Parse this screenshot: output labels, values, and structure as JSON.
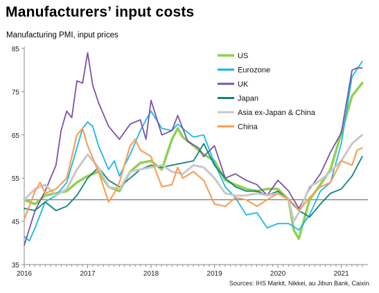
{
  "title": "Manufacturers’ input costs",
  "subtitle": "Manufacturing PMI, input prices",
  "source": "Sources: IHS Markit, Nikkei, au Jibun Bank, Caixin.",
  "chart_data": {
    "type": "line",
    "title": "Manufacturers’ input costs",
    "ylabel": "Manufacturing PMI, input prices",
    "xlabel": "",
    "xlim": [
      2016.0,
      2021.33
    ],
    "ylim": [
      35,
      85
    ],
    "y_ticks": [
      35,
      45,
      55,
      65,
      75,
      85
    ],
    "x_ticks": [
      "2016",
      "2017",
      "2018",
      "2019",
      "2020",
      "2021"
    ],
    "x_tick_values": [
      2016,
      2017,
      2018,
      2019,
      2020,
      2021
    ],
    "reference_line": 50,
    "grid": false,
    "legend_position": "top-right",
    "series": [
      {
        "name": "US",
        "color": "#8fd14f",
        "width": 3.5,
        "points": [
          [
            2016.0,
            50.0
          ],
          [
            2016.17,
            49.0
          ],
          [
            2016.33,
            51.0
          ],
          [
            2016.5,
            51.5
          ],
          [
            2016.67,
            52.0
          ],
          [
            2016.83,
            54.0
          ],
          [
            2017.0,
            55.5
          ],
          [
            2017.17,
            56.5
          ],
          [
            2017.33,
            53.0
          ],
          [
            2017.5,
            52.0
          ],
          [
            2017.67,
            56.5
          ],
          [
            2017.83,
            58.5
          ],
          [
            2018.0,
            59.0
          ],
          [
            2018.17,
            57.0
          ],
          [
            2018.33,
            64.0
          ],
          [
            2018.42,
            66.5
          ],
          [
            2018.5,
            64.5
          ],
          [
            2018.67,
            62.5
          ],
          [
            2018.83,
            60.5
          ],
          [
            2019.0,
            59.0
          ],
          [
            2019.17,
            54.5
          ],
          [
            2019.33,
            53.5
          ],
          [
            2019.5,
            52.5
          ],
          [
            2019.67,
            52.0
          ],
          [
            2019.83,
            52.5
          ],
          [
            2020.0,
            52.5
          ],
          [
            2020.17,
            50.0
          ],
          [
            2020.25,
            43.0
          ],
          [
            2020.33,
            41.0
          ],
          [
            2020.5,
            50.0
          ],
          [
            2020.67,
            53.5
          ],
          [
            2020.83,
            57.0
          ],
          [
            2021.0,
            65.5
          ],
          [
            2021.17,
            74.0
          ],
          [
            2021.33,
            77.0
          ]
        ]
      },
      {
        "name": "Eurozone",
        "color": "#1ab7ea",
        "width": 1.8,
        "points": [
          [
            2016.0,
            41.5
          ],
          [
            2016.08,
            40.5
          ],
          [
            2016.17,
            43.5
          ],
          [
            2016.33,
            49.5
          ],
          [
            2016.5,
            51.0
          ],
          [
            2016.67,
            54.0
          ],
          [
            2016.83,
            62.0
          ],
          [
            2016.92,
            66.5
          ],
          [
            2017.0,
            68.0
          ],
          [
            2017.08,
            67.0
          ],
          [
            2017.17,
            62.5
          ],
          [
            2017.33,
            57.0
          ],
          [
            2017.42,
            59.0
          ],
          [
            2017.5,
            55.5
          ],
          [
            2017.67,
            60.5
          ],
          [
            2017.83,
            66.0
          ],
          [
            2017.92,
            68.5
          ],
          [
            2018.0,
            70.5
          ],
          [
            2018.17,
            66.5
          ],
          [
            2018.33,
            66.0
          ],
          [
            2018.42,
            67.5
          ],
          [
            2018.5,
            66.5
          ],
          [
            2018.67,
            64.5
          ],
          [
            2018.83,
            65.0
          ],
          [
            2019.0,
            58.5
          ],
          [
            2019.17,
            53.0
          ],
          [
            2019.33,
            50.5
          ],
          [
            2019.5,
            46.5
          ],
          [
            2019.67,
            47.0
          ],
          [
            2019.83,
            43.5
          ],
          [
            2020.0,
            44.5
          ],
          [
            2020.17,
            44.5
          ],
          [
            2020.33,
            43.0
          ],
          [
            2020.5,
            46.5
          ],
          [
            2020.67,
            52.0
          ],
          [
            2020.83,
            54.0
          ],
          [
            2021.0,
            63.0
          ],
          [
            2021.17,
            78.5
          ],
          [
            2021.33,
            82.0
          ]
        ]
      },
      {
        "name": "UK",
        "color": "#7a52a8",
        "width": 1.8,
        "points": [
          [
            2016.0,
            39.5
          ],
          [
            2016.17,
            47.5
          ],
          [
            2016.33,
            52.0
          ],
          [
            2016.5,
            58.0
          ],
          [
            2016.58,
            66.0
          ],
          [
            2016.67,
            70.5
          ],
          [
            2016.75,
            69.0
          ],
          [
            2016.83,
            77.5
          ],
          [
            2016.92,
            77.0
          ],
          [
            2017.0,
            84.0
          ],
          [
            2017.08,
            76.5
          ],
          [
            2017.17,
            72.5
          ],
          [
            2017.33,
            67.0
          ],
          [
            2017.5,
            64.0
          ],
          [
            2017.67,
            67.5
          ],
          [
            2017.83,
            68.5
          ],
          [
            2017.92,
            64.0
          ],
          [
            2018.0,
            73.0
          ],
          [
            2018.17,
            65.0
          ],
          [
            2018.33,
            66.0
          ],
          [
            2018.42,
            69.5
          ],
          [
            2018.58,
            63.5
          ],
          [
            2018.75,
            62.0
          ],
          [
            2018.83,
            60.0
          ],
          [
            2019.0,
            62.5
          ],
          [
            2019.17,
            55.0
          ],
          [
            2019.33,
            56.0
          ],
          [
            2019.5,
            54.5
          ],
          [
            2019.67,
            53.5
          ],
          [
            2019.83,
            51.0
          ],
          [
            2020.0,
            54.5
          ],
          [
            2020.17,
            52.0
          ],
          [
            2020.33,
            48.0
          ],
          [
            2020.5,
            52.5
          ],
          [
            2020.67,
            56.0
          ],
          [
            2020.83,
            61.0
          ],
          [
            2021.0,
            65.5
          ],
          [
            2021.17,
            80.0
          ],
          [
            2021.25,
            80.5
          ],
          [
            2021.33,
            80.5
          ]
        ]
      },
      {
        "name": "Japan",
        "color": "#0f8376",
        "width": 1.8,
        "points": [
          [
            2016.0,
            48.0
          ],
          [
            2016.17,
            47.5
          ],
          [
            2016.33,
            49.5
          ],
          [
            2016.5,
            47.5
          ],
          [
            2016.67,
            48.5
          ],
          [
            2016.83,
            51.0
          ],
          [
            2017.0,
            55.0
          ],
          [
            2017.17,
            57.5
          ],
          [
            2017.33,
            54.5
          ],
          [
            2017.5,
            53.0
          ],
          [
            2017.67,
            55.0
          ],
          [
            2017.83,
            57.0
          ],
          [
            2018.0,
            58.0
          ],
          [
            2018.17,
            57.5
          ],
          [
            2018.33,
            58.0
          ],
          [
            2018.5,
            58.5
          ],
          [
            2018.67,
            59.0
          ],
          [
            2018.83,
            63.0
          ],
          [
            2019.0,
            58.0
          ],
          [
            2019.17,
            55.0
          ],
          [
            2019.33,
            53.0
          ],
          [
            2019.5,
            52.0
          ],
          [
            2019.67,
            52.0
          ],
          [
            2019.83,
            51.0
          ],
          [
            2020.0,
            52.0
          ],
          [
            2020.17,
            50.0
          ],
          [
            2020.33,
            47.5
          ],
          [
            2020.5,
            46.0
          ],
          [
            2020.67,
            49.0
          ],
          [
            2020.83,
            51.5
          ],
          [
            2021.0,
            52.5
          ],
          [
            2021.17,
            55.5
          ],
          [
            2021.33,
            60.0
          ]
        ]
      },
      {
        "name": "Asia ex-Japan & China",
        "color": "#c8c8c8",
        "width": 3.0,
        "points": [
          [
            2016.0,
            50.0
          ],
          [
            2016.17,
            52.5
          ],
          [
            2016.33,
            53.5
          ],
          [
            2016.5,
            51.0
          ],
          [
            2016.67,
            52.5
          ],
          [
            2016.83,
            57.0
          ],
          [
            2017.0,
            60.5
          ],
          [
            2017.17,
            57.5
          ],
          [
            2017.33,
            53.0
          ],
          [
            2017.5,
            52.5
          ],
          [
            2017.67,
            56.5
          ],
          [
            2017.83,
            57.0
          ],
          [
            2018.0,
            57.5
          ],
          [
            2018.17,
            58.0
          ],
          [
            2018.33,
            56.5
          ],
          [
            2018.5,
            56.0
          ],
          [
            2018.67,
            58.0
          ],
          [
            2018.83,
            57.5
          ],
          [
            2019.0,
            55.0
          ],
          [
            2019.17,
            51.5
          ],
          [
            2019.33,
            51.0
          ],
          [
            2019.5,
            51.0
          ],
          [
            2019.67,
            51.5
          ],
          [
            2019.83,
            51.0
          ],
          [
            2020.0,
            51.5
          ],
          [
            2020.17,
            50.0
          ],
          [
            2020.25,
            45.0
          ],
          [
            2020.33,
            47.0
          ],
          [
            2020.5,
            53.0
          ],
          [
            2020.67,
            54.5
          ],
          [
            2020.83,
            56.5
          ],
          [
            2021.0,
            59.0
          ],
          [
            2021.17,
            63.0
          ],
          [
            2021.33,
            65.0
          ]
        ]
      },
      {
        "name": "China",
        "color": "#f7a05a",
        "width": 2.2,
        "points": [
          [
            2016.0,
            45.5
          ],
          [
            2016.17,
            52.0
          ],
          [
            2016.25,
            54.0
          ],
          [
            2016.33,
            51.5
          ],
          [
            2016.5,
            52.5
          ],
          [
            2016.67,
            55.0
          ],
          [
            2016.83,
            65.0
          ],
          [
            2016.92,
            66.5
          ],
          [
            2017.0,
            62.5
          ],
          [
            2017.17,
            56.5
          ],
          [
            2017.33,
            49.5
          ],
          [
            2017.42,
            51.5
          ],
          [
            2017.5,
            54.0
          ],
          [
            2017.67,
            62.5
          ],
          [
            2017.75,
            64.0
          ],
          [
            2017.83,
            61.5
          ],
          [
            2018.0,
            60.0
          ],
          [
            2018.08,
            56.5
          ],
          [
            2018.17,
            53.0
          ],
          [
            2018.33,
            53.5
          ],
          [
            2018.42,
            57.5
          ],
          [
            2018.5,
            55.0
          ],
          [
            2018.67,
            56.5
          ],
          [
            2018.83,
            54.5
          ],
          [
            2019.0,
            49.0
          ],
          [
            2019.17,
            48.5
          ],
          [
            2019.33,
            50.5
          ],
          [
            2019.5,
            50.0
          ],
          [
            2019.67,
            48.5
          ],
          [
            2019.83,
            50.0
          ],
          [
            2020.0,
            51.5
          ],
          [
            2020.17,
            50.0
          ],
          [
            2020.25,
            49.0
          ],
          [
            2020.33,
            47.5
          ],
          [
            2020.5,
            50.5
          ],
          [
            2020.67,
            53.0
          ],
          [
            2020.83,
            54.0
          ],
          [
            2021.0,
            59.0
          ],
          [
            2021.17,
            58.0
          ],
          [
            2021.25,
            61.5
          ],
          [
            2021.33,
            62.0
          ]
        ]
      }
    ]
  }
}
